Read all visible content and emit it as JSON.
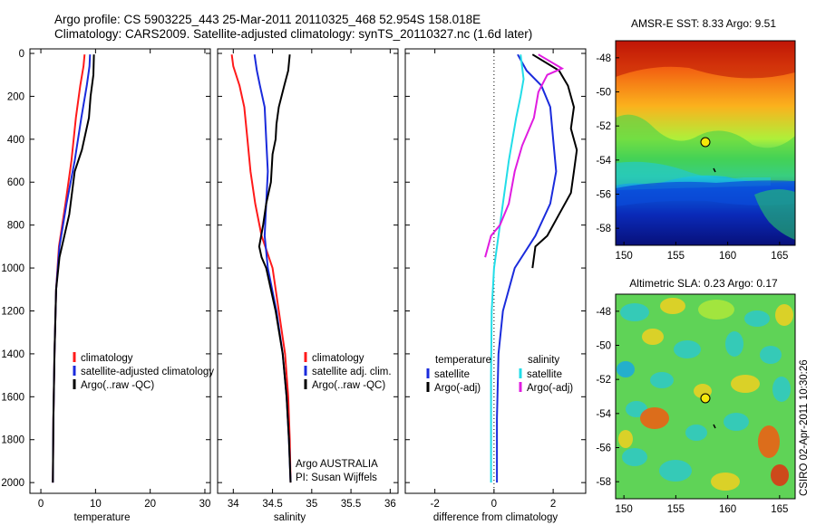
{
  "header": {
    "line1": "Argo profile: CS 5903225_443 25-Mar-2011 20110325_468 52.954S 158.018E",
    "line2": "Climatology: CARS2009. Satellite-adjusted climatology: synTS_20110327.nc (1.6d later)"
  },
  "colors": {
    "red": "#ff1a1a",
    "blue": "#1a2bdc",
    "black": "#000000",
    "cyan": "#22dde8",
    "magenta": "#e01ce0"
  },
  "chart_data": [
    {
      "type": "line",
      "xlabel": "temperature",
      "xlim": [
        -2,
        31
      ],
      "ylim": [
        0,
        2050
      ],
      "xticks": [
        0,
        10,
        20,
        30
      ],
      "yticks": [
        0,
        200,
        400,
        600,
        800,
        1000,
        1200,
        1400,
        1600,
        1800,
        2000
      ],
      "legend": {
        "placement": "lower-middle",
        "entries": [
          "climatology",
          "satellite-adjusted climatology",
          "Argo(..raw -QC)"
        ]
      },
      "series": [
        {
          "name": "climatology",
          "color": "red",
          "points": [
            [
              8,
              5
            ],
            [
              7.8,
              60
            ],
            [
              7.2,
              150
            ],
            [
              6.4,
              300
            ],
            [
              5.6,
              500
            ],
            [
              4.5,
              700
            ],
            [
              3.3,
              900
            ],
            [
              2.8,
              1100
            ],
            [
              2.5,
              1400
            ],
            [
              2.3,
              1700
            ],
            [
              2.2,
              2000
            ]
          ]
        },
        {
          "name": "satellite-adjusted climatology",
          "color": "blue",
          "points": [
            [
              9,
              5
            ],
            [
              8.9,
              60
            ],
            [
              8.4,
              150
            ],
            [
              7.4,
              300
            ],
            [
              6.2,
              500
            ],
            [
              4.7,
              700
            ],
            [
              3.4,
              900
            ],
            [
              2.8,
              1100
            ],
            [
              2.5,
              1400
            ],
            [
              2.3,
              1700
            ],
            [
              2.2,
              2000
            ]
          ]
        },
        {
          "name": "Argo(..raw -QC)",
          "color": "black",
          "points": [
            [
              9.7,
              5
            ],
            [
              9.6,
              100
            ],
            [
              9.1,
              200
            ],
            [
              8.8,
              300
            ],
            [
              7.5,
              450
            ],
            [
              6.2,
              550
            ],
            [
              5.7,
              650
            ],
            [
              5.2,
              750
            ],
            [
              4.3,
              850
            ],
            [
              3.4,
              950
            ],
            [
              2.8,
              1100
            ],
            [
              2.5,
              1400
            ],
            [
              2.3,
              1700
            ],
            [
              2.2,
              2000
            ]
          ]
        }
      ]
    },
    {
      "type": "line",
      "xlabel": "salinity",
      "xlim": [
        33.8,
        36.1
      ],
      "ylim": [
        0,
        2050
      ],
      "xticks": [
        34,
        34.5,
        35,
        35.5,
        36
      ],
      "yticks": [
        0,
        200,
        400,
        600,
        800,
        1000,
        1200,
        1400,
        1600,
        1800,
        2000
      ],
      "legend": {
        "placement": "lower-middle",
        "entries": [
          "climatology",
          "satellite adj. clim.",
          "Argo(..raw -QC)"
        ]
      },
      "annotations": [
        "Argo AUSTRALIA",
        "PI: Susan Wijffels"
      ],
      "series": [
        {
          "name": "climatology",
          "color": "red",
          "points": [
            [
              33.98,
              5
            ],
            [
              34.0,
              60
            ],
            [
              34.08,
              150
            ],
            [
              34.14,
              250
            ],
            [
              34.18,
              400
            ],
            [
              34.22,
              550
            ],
            [
              34.28,
              700
            ],
            [
              34.36,
              850
            ],
            [
              34.5,
              1000
            ],
            [
              34.58,
              1200
            ],
            [
              34.66,
              1400
            ],
            [
              34.7,
              1600
            ],
            [
              34.72,
              1800
            ],
            [
              34.73,
              2000
            ]
          ]
        },
        {
          "name": "satellite adj. clim.",
          "color": "blue",
          "points": [
            [
              34.27,
              5
            ],
            [
              34.3,
              80
            ],
            [
              34.34,
              150
            ],
            [
              34.4,
              250
            ],
            [
              34.42,
              400
            ],
            [
              34.44,
              550
            ],
            [
              34.42,
              700
            ],
            [
              34.4,
              850
            ],
            [
              34.44,
              1000
            ],
            [
              34.55,
              1200
            ],
            [
              34.63,
              1400
            ],
            [
              34.68,
              1600
            ],
            [
              34.71,
              1800
            ],
            [
              34.73,
              2000
            ]
          ]
        },
        {
          "name": "Argo(..raw -QC)",
          "color": "black",
          "points": [
            [
              34.72,
              5
            ],
            [
              34.7,
              80
            ],
            [
              34.65,
              150
            ],
            [
              34.58,
              250
            ],
            [
              34.55,
              330
            ],
            [
              34.54,
              400
            ],
            [
              34.5,
              470
            ],
            [
              34.48,
              600
            ],
            [
              34.42,
              700
            ],
            [
              34.38,
              800
            ],
            [
              34.33,
              900
            ],
            [
              34.36,
              950
            ],
            [
              34.42,
              1000
            ],
            [
              34.54,
              1200
            ],
            [
              34.63,
              1400
            ],
            [
              34.68,
              1600
            ],
            [
              34.71,
              1800
            ],
            [
              34.73,
              2000
            ]
          ]
        }
      ]
    },
    {
      "type": "line",
      "xlabel": "difference from climatology",
      "xlim": [
        -3,
        3.1
      ],
      "ylim": [
        0,
        2050
      ],
      "xticks": [
        -2,
        0,
        2
      ],
      "yticks": [
        0,
        200,
        400,
        600,
        800,
        1000,
        1200,
        1400,
        1600,
        1800,
        2000
      ],
      "legend": {
        "placement": "lower-middle",
        "headers": [
          "temperature",
          "salinity"
        ],
        "entries": [
          "satellite",
          "Argo(-adj)",
          "satellite",
          "Argo(-adj)"
        ]
      },
      "series": [
        {
          "name": "temperature satellite",
          "color": "blue",
          "points": [
            [
              0.8,
              5
            ],
            [
              1.1,
              80
            ],
            [
              1.6,
              150
            ],
            [
              1.9,
              250
            ],
            [
              2.0,
              400
            ],
            [
              2.1,
              550
            ],
            [
              1.9,
              700
            ],
            [
              1.4,
              850
            ],
            [
              0.7,
              1000
            ],
            [
              0.3,
              1200
            ],
            [
              0.15,
              1400
            ],
            [
              0.1,
              1700
            ],
            [
              0.1,
              2000
            ]
          ]
        },
        {
          "name": "temperature Argo(-adj)",
          "color": "black",
          "points": [
            [
              1.3,
              5
            ],
            [
              2.2,
              80
            ],
            [
              2.5,
              150
            ],
            [
              2.7,
              250
            ],
            [
              2.6,
              350
            ],
            [
              2.8,
              450
            ],
            [
              2.7,
              550
            ],
            [
              2.6,
              650
            ],
            [
              2.2,
              750
            ],
            [
              1.8,
              850
            ],
            [
              1.4,
              900
            ],
            [
              1.3,
              1000
            ]
          ]
        },
        {
          "name": "salinity satellite",
          "color": "cyan",
          "points": [
            [
              0.9,
              5
            ],
            [
              1.0,
              120
            ],
            [
              0.9,
              200
            ],
            [
              0.75,
              300
            ],
            [
              0.5,
              500
            ],
            [
              0.2,
              800
            ],
            [
              0,
              1000
            ],
            [
              -0.08,
              1200
            ],
            [
              -0.1,
              1500
            ],
            [
              -0.1,
              1800
            ],
            [
              -0.1,
              2000
            ]
          ]
        },
        {
          "name": "salinity Argo(-adj)",
          "color": "magenta",
          "points": [
            [
              1.5,
              5
            ],
            [
              2.3,
              70
            ],
            [
              1.8,
              100
            ],
            [
              1.5,
              180
            ],
            [
              1.35,
              300
            ],
            [
              0.95,
              430
            ],
            [
              0.7,
              550
            ],
            [
              0.5,
              700
            ],
            [
              0.2,
              800
            ],
            [
              -0.1,
              850
            ],
            [
              -0.3,
              950
            ]
          ]
        }
      ]
    }
  ],
  "maps": [
    {
      "title": "AMSR-E SST: 8.33 Argo: 9.51",
      "xticks": [
        150,
        155,
        160,
        165
      ],
      "yticks": [
        -48,
        -50,
        -52,
        -54,
        -56,
        -58
      ],
      "argo_position": {
        "lon": 158.018,
        "lat": -52.954
      }
    },
    {
      "title": "Altimetric SLA: 0.23 Argo: 0.17",
      "xticks": [
        150,
        155,
        160,
        165
      ],
      "yticks": [
        -48,
        -50,
        -52,
        -54,
        -56,
        -58
      ],
      "argo_position": {
        "lon": 158.018,
        "lat": -52.954
      }
    }
  ],
  "footer": {
    "stamp": "CSIRO 02-Apr-2011 10:30:26"
  }
}
